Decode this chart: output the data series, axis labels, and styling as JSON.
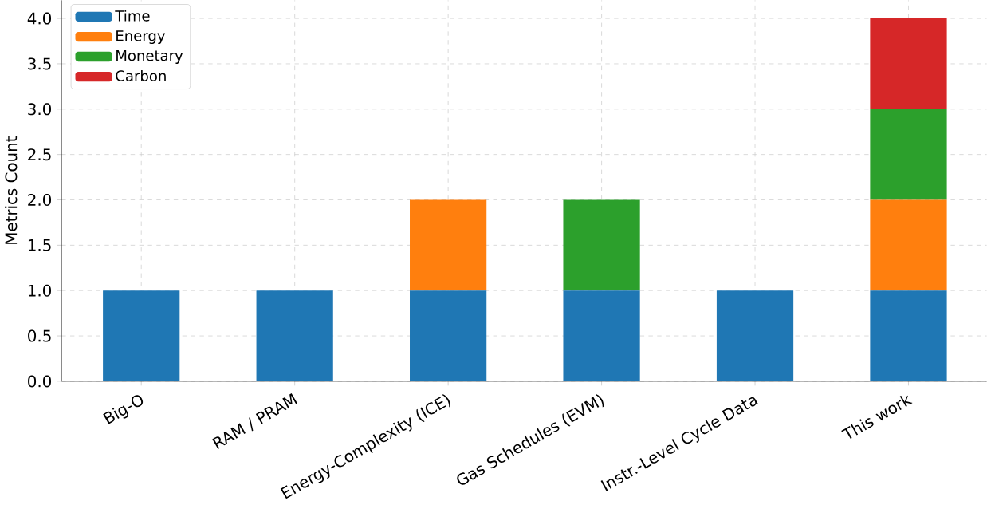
{
  "chart_data": {
    "type": "bar",
    "stacked": true,
    "ylabel": "Metrics Count",
    "categories": [
      "Big-O",
      "RAM / PRAM",
      "Energy-Complexity (ICE)",
      "Gas Schedules (EVM)",
      "Instr.-Level Cycle Data",
      "This work"
    ],
    "series": [
      {
        "name": "Time",
        "color": "#1f77b4",
        "values": [
          1,
          1,
          1,
          1,
          1,
          1
        ]
      },
      {
        "name": "Energy",
        "color": "#ff7f0e",
        "values": [
          null,
          null,
          1,
          null,
          null,
          1
        ]
      },
      {
        "name": "Monetary",
        "color": "#2ca02c",
        "values": [
          null,
          null,
          null,
          1,
          null,
          1
        ]
      },
      {
        "name": "Carbon",
        "color": "#d62728",
        "values": [
          null,
          null,
          null,
          null,
          null,
          1
        ]
      }
    ],
    "ylim": [
      0,
      4.2
    ],
    "yticks": [
      {
        "value": 0,
        "label": "0.0"
      },
      {
        "value": 0.5,
        "label": "0.5"
      },
      {
        "value": 1,
        "label": "1.0"
      },
      {
        "value": 1.5,
        "label": "1.5"
      },
      {
        "value": 2,
        "label": "2.0"
      },
      {
        "value": 2.5,
        "label": "2.5"
      },
      {
        "value": 3,
        "label": "3.0"
      },
      {
        "value": 3.5,
        "label": "3.5"
      },
      {
        "value": 4,
        "label": "4.0"
      }
    ],
    "grid": true,
    "legend": "top left"
  }
}
